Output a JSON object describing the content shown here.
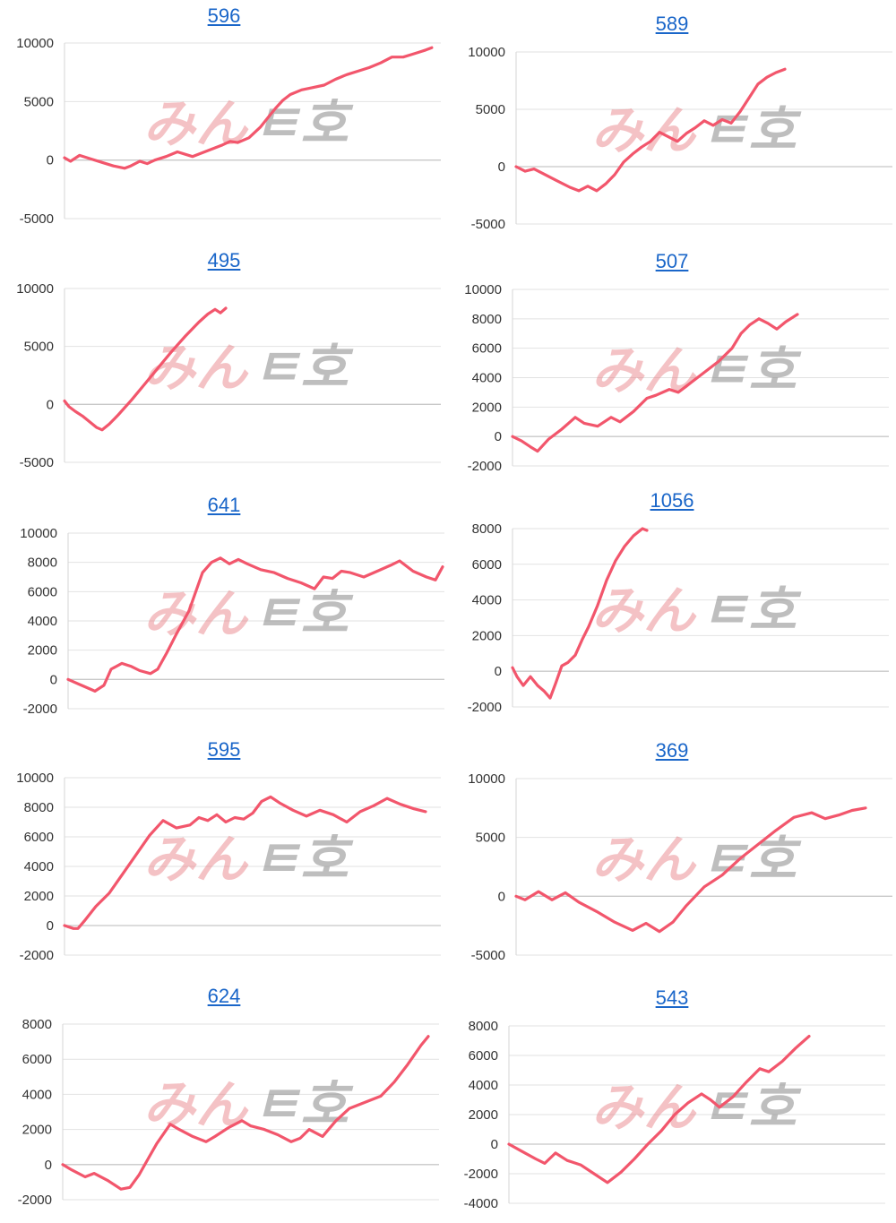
{
  "watermark": {
    "part1": "みん",
    "part2": "ㅌ호"
  },
  "colors": {
    "line": "#f2566c",
    "link": "#1a66c9"
  },
  "chart_data": [
    {
      "type": "line",
      "title": "596",
      "yticks": [
        10000,
        5000,
        0,
        -5000
      ],
      "ylim": [
        -5000,
        10000
      ],
      "x": [
        0,
        8,
        20,
        35,
        50,
        65,
        80,
        88,
        100,
        110,
        120,
        135,
        150,
        170,
        190,
        210,
        220,
        230,
        245,
        260,
        270,
        280,
        290,
        300,
        315,
        330,
        345,
        360,
        375,
        390,
        405,
        420,
        435,
        450,
        460,
        470,
        480,
        488
      ],
      "y": [
        200,
        -100,
        400,
        100,
        -200,
        -500,
        -700,
        -500,
        -100,
        -300,
        0,
        300,
        700,
        300,
        800,
        1300,
        1600,
        1500,
        1900,
        2800,
        3600,
        4400,
        5100,
        5600,
        6000,
        6200,
        6400,
        6900,
        7300,
        7600,
        7900,
        8300,
        8800,
        8800,
        9000,
        9200,
        9400,
        9600
      ]
    },
    {
      "type": "line",
      "title": "589",
      "yticks": [
        10000,
        5000,
        0,
        -5000
      ],
      "ylim": [
        -5000,
        10000
      ],
      "x": [
        0,
        10,
        20,
        30,
        45,
        60,
        70,
        80,
        90,
        100,
        110,
        120,
        130,
        140,
        150,
        160,
        170,
        180,
        190,
        200,
        210,
        220,
        230,
        240,
        250,
        260,
        270,
        280,
        290,
        300
      ],
      "y": [
        0,
        -400,
        -200,
        -600,
        -1200,
        -1800,
        -2100,
        -1700,
        -2100,
        -1500,
        -700,
        400,
        1100,
        1700,
        2200,
        3000,
        2600,
        2200,
        2900,
        3400,
        4000,
        3600,
        4100,
        3800,
        4800,
        6000,
        7200,
        7800,
        8200,
        8500
      ]
    },
    {
      "type": "line",
      "title": "495",
      "yticks": [
        10000,
        5000,
        0,
        -5000
      ],
      "ylim": [
        -5000,
        10000
      ],
      "x": [
        0,
        5,
        12,
        20,
        28,
        36,
        42,
        50,
        60,
        75,
        90,
        105,
        120,
        135,
        150,
        160,
        168,
        174,
        180
      ],
      "y": [
        300,
        -200,
        -600,
        -1000,
        -1500,
        -2000,
        -2200,
        -1700,
        -900,
        400,
        1800,
        3200,
        4600,
        5900,
        7100,
        7800,
        8200,
        7900,
        8300
      ]
    },
    {
      "type": "line",
      "title": "507",
      "yticks": [
        10000,
        8000,
        6000,
        4000,
        2000,
        0,
        -2000
      ],
      "ylim": [
        -2000,
        10000
      ],
      "x": [
        0,
        10,
        20,
        28,
        40,
        55,
        70,
        80,
        95,
        110,
        120,
        135,
        150,
        160,
        175,
        185,
        200,
        215,
        230,
        245,
        255,
        265,
        275,
        285,
        295,
        305,
        318
      ],
      "y": [
        0,
        -300,
        -700,
        -1000,
        -200,
        500,
        1300,
        900,
        700,
        1300,
        1000,
        1700,
        2600,
        2800,
        3200,
        3000,
        3700,
        4400,
        5100,
        6000,
        7000,
        7600,
        8000,
        7700,
        7300,
        7800,
        8300
      ]
    },
    {
      "type": "line",
      "title": "641",
      "yticks": [
        10000,
        8000,
        6000,
        4000,
        2000,
        0,
        -2000
      ],
      "ylim": [
        -2000,
        10000
      ],
      "x": [
        0,
        15,
        30,
        40,
        48,
        60,
        70,
        80,
        92,
        100,
        110,
        120,
        135,
        150,
        160,
        170,
        180,
        190,
        200,
        215,
        230,
        245,
        260,
        275,
        285,
        295,
        305,
        315,
        330,
        345,
        360,
        370,
        385,
        400,
        410,
        418
      ],
      "y": [
        0,
        -400,
        -800,
        -400,
        700,
        1100,
        900,
        600,
        400,
        700,
        1800,
        3000,
        4700,
        7300,
        8000,
        8300,
        7900,
        8200,
        7900,
        7500,
        7300,
        6900,
        6600,
        6200,
        7000,
        6900,
        7400,
        7300,
        7000,
        7400,
        7800,
        8100,
        7400,
        7000,
        6800,
        7700
      ]
    },
    {
      "type": "line",
      "title": "1056",
      "yticks": [
        8000,
        6000,
        4000,
        2000,
        0,
        -2000
      ],
      "ylim": [
        -2000,
        8000
      ],
      "x": [
        0,
        5,
        12,
        20,
        28,
        35,
        42,
        48,
        55,
        62,
        70,
        78,
        85,
        95,
        105,
        115,
        125,
        135,
        145,
        150
      ],
      "y": [
        200,
        -300,
        -800,
        -300,
        -800,
        -1100,
        -1500,
        -700,
        300,
        500,
        900,
        1800,
        2500,
        3700,
        5100,
        6200,
        7000,
        7600,
        8000,
        7900
      ]
    },
    {
      "type": "line",
      "title": "595",
      "yticks": [
        10000,
        8000,
        6000,
        4000,
        2000,
        0,
        -2000
      ],
      "ylim": [
        -2000,
        10000
      ],
      "x": [
        0,
        10,
        15,
        22,
        35,
        50,
        65,
        80,
        95,
        110,
        125,
        140,
        150,
        160,
        170,
        180,
        190,
        200,
        210,
        220,
        230,
        240,
        255,
        270,
        285,
        300,
        315,
        330,
        345,
        360,
        375,
        390,
        403
      ],
      "y": [
        0,
        -200,
        -200,
        300,
        1300,
        2200,
        3500,
        4800,
        6100,
        7100,
        6600,
        6800,
        7300,
        7100,
        7500,
        7000,
        7300,
        7200,
        7600,
        8400,
        8700,
        8300,
        7800,
        7400,
        7800,
        7500,
        7000,
        7700,
        8100,
        8600,
        8200,
        7900,
        7700
      ]
    },
    {
      "type": "line",
      "title": "369",
      "yticks": [
        10000,
        5000,
        0,
        -5000
      ],
      "ylim": [
        -5000,
        10000
      ],
      "x": [
        0,
        10,
        25,
        40,
        55,
        70,
        90,
        110,
        130,
        145,
        160,
        175,
        190,
        210,
        230,
        250,
        270,
        290,
        310,
        330,
        345,
        360,
        375,
        390
      ],
      "y": [
        0,
        -300,
        400,
        -300,
        300,
        -500,
        -1300,
        -2200,
        -2900,
        -2300,
        -3000,
        -2200,
        -800,
        800,
        1800,
        3200,
        4400,
        5600,
        6700,
        7100,
        6600,
        6900,
        7300,
        7500
      ]
    },
    {
      "type": "line",
      "title": "624",
      "yticks": [
        8000,
        6000,
        4000,
        2000,
        0,
        -2000
      ],
      "ylim": [
        -2000,
        8000
      ],
      "x": [
        0,
        10,
        25,
        35,
        50,
        65,
        75,
        85,
        95,
        105,
        120,
        130,
        145,
        160,
        170,
        185,
        200,
        210,
        225,
        240,
        255,
        265,
        275,
        290,
        305,
        320,
        340,
        355,
        370,
        385,
        400,
        408
      ],
      "y": [
        0,
        -300,
        -700,
        -500,
        -900,
        -1400,
        -1300,
        -600,
        300,
        1200,
        2300,
        2000,
        1600,
        1300,
        1600,
        2100,
        2500,
        2200,
        2000,
        1700,
        1300,
        1500,
        2000,
        1600,
        2500,
        3200,
        3600,
        3900,
        4700,
        5700,
        6800,
        7300
      ]
    },
    {
      "type": "line",
      "title": "543",
      "yticks": [
        8000,
        6000,
        4000,
        2000,
        0,
        -2000,
        -4000
      ],
      "ylim": [
        -4000,
        8000
      ],
      "x": [
        0,
        15,
        30,
        40,
        52,
        65,
        80,
        95,
        110,
        125,
        140,
        155,
        170,
        185,
        200,
        215,
        225,
        235,
        250,
        265,
        280,
        290,
        305,
        320,
        335
      ],
      "y": [
        0,
        -500,
        -1000,
        -1300,
        -600,
        -1100,
        -1400,
        -2000,
        -2600,
        -1900,
        -1000,
        0,
        900,
        2000,
        2800,
        3400,
        3000,
        2500,
        3200,
        4200,
        5100,
        4900,
        5600,
        6500,
        7300
      ]
    }
  ]
}
